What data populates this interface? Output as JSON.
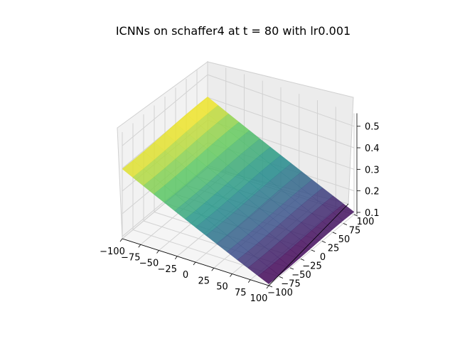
{
  "chart_data": {
    "type": "surface3d",
    "title": "ICNNs on schaffer4 at t = 80 with lr0.001",
    "xlabel": "",
    "ylabel": "",
    "zlabel": "",
    "x_ticks": [
      -100,
      -75,
      -50,
      -25,
      0,
      25,
      50,
      75,
      100
    ],
    "y_ticks": [
      -100,
      -75,
      -50,
      -25,
      0,
      25,
      50,
      75,
      100
    ],
    "z_ticks": [
      0.1,
      0.2,
      0.3,
      0.4,
      0.5
    ],
    "x_tick_labels": [
      "−100",
      "−75",
      "−50",
      "−25",
      "0",
      "25",
      "50",
      "75",
      "100"
    ],
    "y_tick_labels": [
      "−100",
      "−75",
      "−50",
      "−25",
      "0",
      "25",
      "50",
      "75",
      "100"
    ],
    "z_tick_labels": [
      "0.1",
      "0.2",
      "0.3",
      "0.4",
      "0.5"
    ],
    "xlim": [
      -100,
      100
    ],
    "ylim": [
      -100,
      100
    ],
    "zlim": [
      0.09,
      0.56
    ],
    "grid": true,
    "colormap": "viridis",
    "surface": {
      "description_of_shape": "near-planar surface descending linearly from x=-100 to x=100, nearly constant in y",
      "z_at_x_min": 0.4,
      "z_at_x_max": 0.1
    },
    "colors": {
      "pane": "#f2f2f2",
      "grid": "#d2d2d2",
      "viridis_low": "#440154",
      "viridis_mid": "#21918c",
      "viridis_high": "#fde725"
    }
  }
}
